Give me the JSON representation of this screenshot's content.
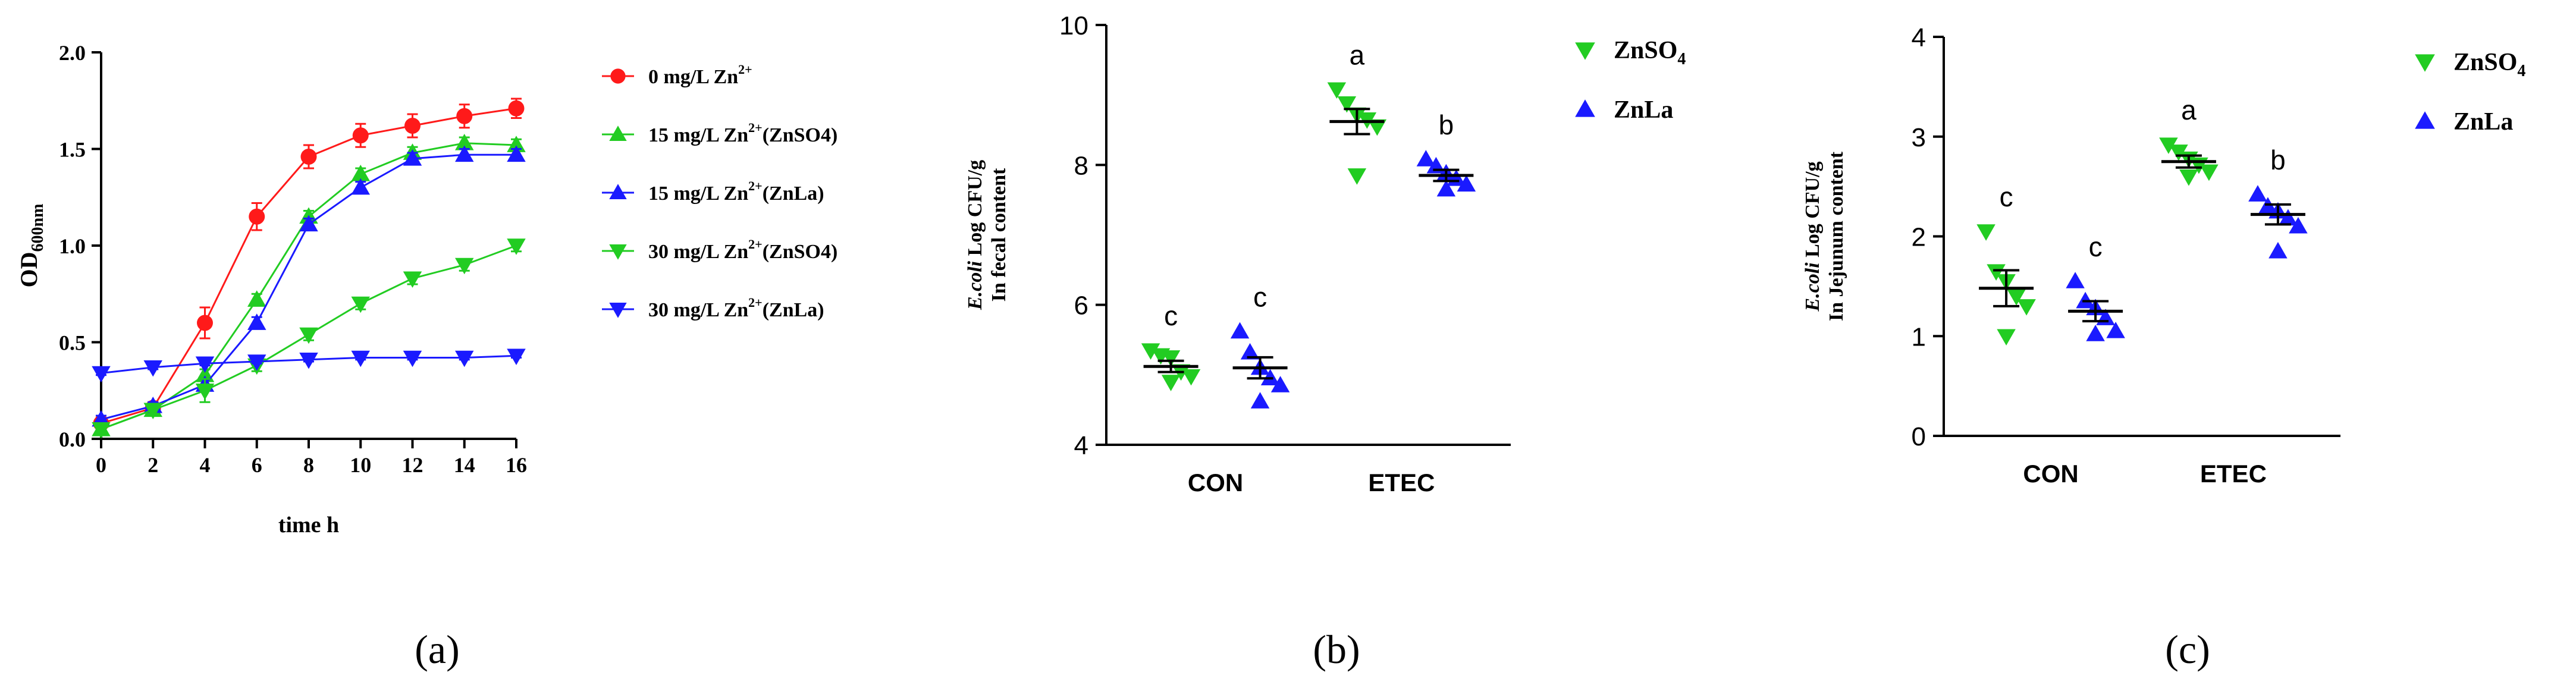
{
  "panel_labels": [
    "(a)",
    "(b)",
    "(c)"
  ],
  "colors": {
    "red": "#ff1a1a",
    "green": "#22cc22",
    "blue": "#1a1aff",
    "axis": "#000000"
  },
  "chart_data": [
    {
      "type": "line",
      "xlabel": "time h",
      "ylabel": "OD",
      "ylabel_sub": "600nm",
      "xlim": [
        0,
        16
      ],
      "ylim": [
        0,
        2.0
      ],
      "x": [
        0,
        2,
        4,
        6,
        8,
        10,
        12,
        14,
        16
      ],
      "xticks": [
        "0",
        "2",
        "4",
        "6",
        "8",
        "10",
        "12",
        "14",
        "16"
      ],
      "yticks": [
        "0.0",
        "0.5",
        "1.0",
        "1.5",
        "2.0"
      ],
      "legend": "right",
      "series": [
        {
          "name": "0 mg/L Zn",
          "sup": "2+",
          "suffix": "",
          "marker": "circle",
          "color": "#ff1a1a",
          "values": [
            0.08,
            0.16,
            0.6,
            1.15,
            1.46,
            1.57,
            1.62,
            1.67,
            1.71
          ],
          "errors": [
            0.03,
            0.03,
            0.08,
            0.07,
            0.06,
            0.06,
            0.06,
            0.06,
            0.05
          ]
        },
        {
          "name": "15 mg/L Zn",
          "sup": "2+",
          "suffix": "(ZnSO4)",
          "marker": "triangle-up",
          "color": "#22cc22",
          "values": [
            0.05,
            0.15,
            0.33,
            0.72,
            1.15,
            1.37,
            1.48,
            1.53,
            1.52
          ],
          "errors": [
            0.02,
            0.02,
            0.03,
            0.03,
            0.03,
            0.03,
            0.03,
            0.03,
            0.03
          ]
        },
        {
          "name": "15 mg/L Zn",
          "sup": "2+",
          "suffix": "(ZnLa)",
          "marker": "triangle-up",
          "color": "#1a1aff",
          "values": [
            0.1,
            0.17,
            0.28,
            0.6,
            1.11,
            1.3,
            1.45,
            1.47,
            1.47
          ],
          "errors": [
            0.02,
            0.02,
            0.03,
            0.03,
            0.03,
            0.03,
            0.03,
            0.03,
            0.03
          ]
        },
        {
          "name": "30 mg/L Zn",
          "sup": "2+",
          "suffix": "(ZnSO4)",
          "marker": "triangle-down",
          "color": "#22cc22",
          "values": [
            0.05,
            0.15,
            0.25,
            0.38,
            0.54,
            0.7,
            0.83,
            0.9,
            1.0
          ],
          "errors": [
            0.02,
            0.02,
            0.06,
            0.03,
            0.03,
            0.03,
            0.03,
            0.03,
            0.03
          ]
        },
        {
          "name": "30 mg/L Zn",
          "sup": "2+",
          "suffix": "(ZnLa)",
          "marker": "triangle-down",
          "color": "#1a1aff",
          "values": [
            0.34,
            0.37,
            0.39,
            0.4,
            0.41,
            0.42,
            0.42,
            0.42,
            0.43
          ],
          "errors": [
            0.01,
            0.01,
            0.01,
            0.01,
            0.01,
            0.01,
            0.01,
            0.01,
            0.01
          ]
        }
      ]
    },
    {
      "type": "scatter",
      "ylabel_italic": "E.coli",
      "ylabel_rest": " Log CFU/g",
      "ylabel_line2": "In fecal content",
      "ylim": [
        4,
        10
      ],
      "yticks": [
        "4",
        "6",
        "8",
        "10"
      ],
      "categories": [
        "CON",
        "ETEC"
      ],
      "legend": "right",
      "legend_entries": [
        {
          "name": "ZnSO",
          "sub": "4",
          "marker": "triangle-down",
          "color": "#22cc22"
        },
        {
          "name": "ZnLa",
          "sub": "",
          "marker": "triangle-up",
          "color": "#1a1aff"
        }
      ],
      "groups": [
        {
          "category": "CON",
          "series": "ZnSO4",
          "marker": "triangle-down",
          "color": "#22cc22",
          "letter": "c",
          "mean": 5.12,
          "sem": 0.08,
          "points": [
            5.35,
            5.28,
            5.25,
            5.05,
            4.98,
            4.9
          ]
        },
        {
          "category": "CON",
          "series": "ZnLa",
          "marker": "triangle-up",
          "color": "#1a1aff",
          "letter": "c",
          "mean": 5.1,
          "sem": 0.15,
          "points": [
            5.62,
            5.32,
            5.1,
            4.95,
            4.85,
            4.62
          ]
        },
        {
          "category": "ETEC",
          "series": "ZnSO4",
          "marker": "triangle-down",
          "color": "#22cc22",
          "letter": "a",
          "mean": 8.62,
          "sem": 0.18,
          "points": [
            9.08,
            8.88,
            8.72,
            8.65,
            8.55,
            7.85
          ]
        },
        {
          "category": "ETEC",
          "series": "ZnLa",
          "marker": "triangle-up",
          "color": "#1a1aff",
          "letter": "b",
          "mean": 7.85,
          "sem": 0.08,
          "points": [
            8.08,
            7.98,
            7.88,
            7.8,
            7.72,
            7.65
          ]
        }
      ]
    },
    {
      "type": "scatter",
      "ylabel_italic": "E.coli",
      "ylabel_rest": " Log CFU/g",
      "ylabel_line2": "In Jejunum content",
      "ylim": [
        0,
        4
      ],
      "yticks": [
        "0",
        "1",
        "2",
        "3",
        "4"
      ],
      "categories": [
        "CON",
        "ETEC"
      ],
      "legend": "right",
      "legend_entries": [
        {
          "name": "ZnSO",
          "sub": "4",
          "marker": "triangle-down",
          "color": "#22cc22"
        },
        {
          "name": "ZnLa",
          "sub": "",
          "marker": "triangle-up",
          "color": "#1a1aff"
        }
      ],
      "groups": [
        {
          "category": "CON",
          "series": "ZnSO4",
          "marker": "triangle-down",
          "color": "#22cc22",
          "letter": "c",
          "mean": 1.48,
          "sem": 0.18,
          "points": [
            2.05,
            1.65,
            1.55,
            1.4,
            1.3,
            1.0
          ]
        },
        {
          "category": "CON",
          "series": "ZnLa",
          "marker": "triangle-up",
          "color": "#1a1aff",
          "letter": "c",
          "mean": 1.25,
          "sem": 0.1,
          "points": [
            1.55,
            1.35,
            1.28,
            1.18,
            1.05,
            1.02
          ]
        },
        {
          "category": "ETEC",
          "series": "ZnSO4",
          "marker": "triangle-down",
          "color": "#22cc22",
          "letter": "a",
          "mean": 2.75,
          "sem": 0.06,
          "points": [
            2.92,
            2.85,
            2.78,
            2.72,
            2.65,
            2.6
          ]
        },
        {
          "category": "ETEC",
          "series": "ZnLa",
          "marker": "triangle-up",
          "color": "#1a1aff",
          "letter": "b",
          "mean": 2.22,
          "sem": 0.1,
          "points": [
            2.42,
            2.3,
            2.25,
            2.18,
            2.1,
            1.85
          ]
        }
      ]
    }
  ]
}
